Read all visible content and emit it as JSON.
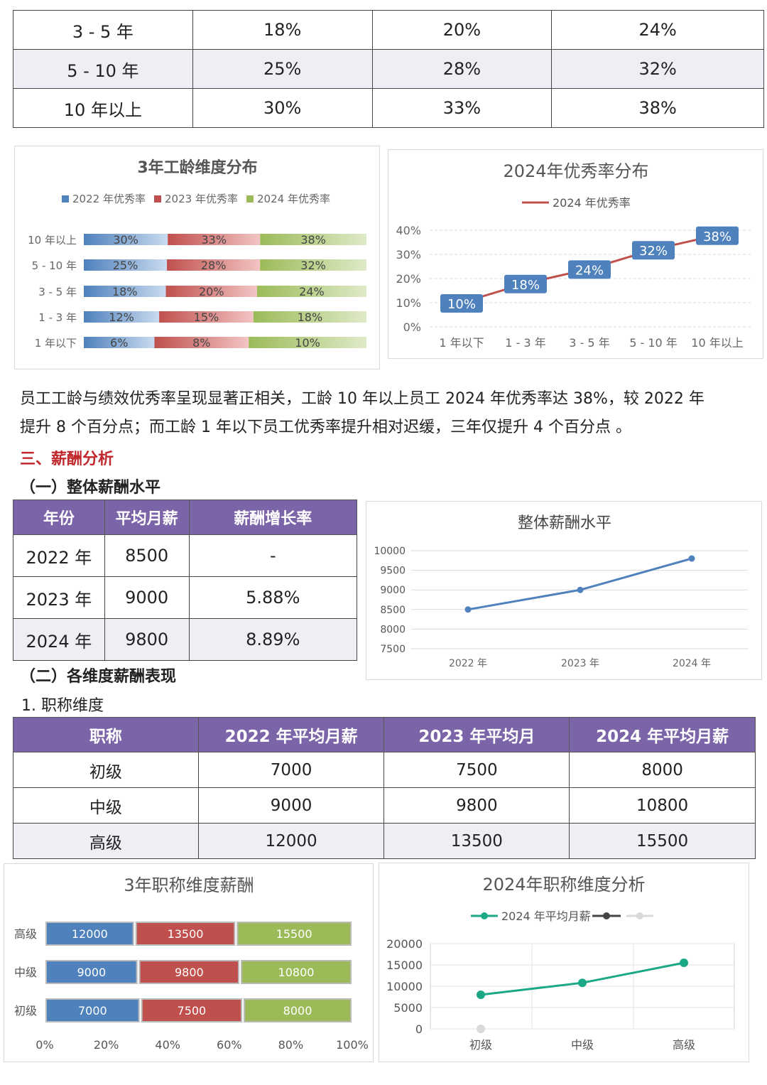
{
  "tenure_table": {
    "rows": [
      [
        "3 - 5 年",
        "18%",
        "20%",
        "24%"
      ],
      [
        "5 - 10 年",
        "25%",
        "28%",
        "32%"
      ],
      [
        "10 年以上",
        "30%",
        "33%",
        "38%"
      ]
    ]
  },
  "chart_titles": {
    "tenure_stacked": "3年工龄维度分布",
    "excellence_2024": "2024年优秀率分布",
    "overall_salary": "整体薪酬水平",
    "title_stacked": "3年职称维度薪酬",
    "title_2024": "2024年职称维度分析"
  },
  "paragraph": {
    "line1": "员工工龄与绩效优秀率呈现显著正相关，工龄 10 年以上员工 2024 年优秀率达 38%，较 2022 年",
    "line2": "提升 8 个百分点；而工龄 1 年以下员工优秀率提升相对迟缓，三年仅提升 4 个百分点 。"
  },
  "headings": {
    "section3": "三、薪酬分析",
    "sub1": "（一）整体薪酬水平",
    "sub2": "（二）各维度薪酬表现",
    "item1": "1. 职称维度"
  },
  "overall_table": {
    "headers": [
      "年份",
      "平均月薪",
      "薪酬增长率"
    ],
    "rows": [
      [
        "2022 年",
        "8500",
        "-"
      ],
      [
        "2023 年",
        "9000",
        "5.88%"
      ],
      [
        "2024 年",
        "9800",
        "8.89%"
      ]
    ]
  },
  "title_table": {
    "headers": [
      "职称",
      "2022 年平均月薪",
      "2023 年平均月",
      "2024 年平均月薪"
    ],
    "rows": [
      [
        "初级",
        "7000",
        "7500",
        "8000"
      ],
      [
        "中级",
        "9000",
        "9800",
        "10800"
      ],
      [
        "高级",
        "12000",
        "13500",
        "15500"
      ]
    ]
  },
  "colors": {
    "blue": "#4f81bd",
    "red": "#c0504d",
    "green": "#9bbb59",
    "purple": "#7c64a8",
    "teal": "#1aa887",
    "heading_red": "#c0282d"
  },
  "chart_data": [
    {
      "type": "bar",
      "stacked": "percent",
      "orientation": "horizontal",
      "categories": [
        "1 年以下",
        "1 - 3 年",
        "3 - 5 年",
        "5 - 10 年",
        "10 年以上"
      ],
      "series": [
        {
          "name": "2022 年优秀率",
          "values": [
            6,
            12,
            18,
            25,
            30
          ],
          "labels": [
            "6%",
            "12%",
            "18%",
            "25%",
            "30%"
          ]
        },
        {
          "name": "2023 年优秀率",
          "values": [
            8,
            15,
            20,
            28,
            33
          ],
          "labels": [
            "8%",
            "15%",
            "20%",
            "28%",
            "33%"
          ]
        },
        {
          "name": "2024 年优秀率",
          "values": [
            10,
            18,
            24,
            32,
            38
          ],
          "labels": [
            "10%",
            "18%",
            "24%",
            "32%",
            "38%"
          ]
        }
      ],
      "legend": "top"
    },
    {
      "type": "line",
      "categories": [
        "1 年以下",
        "1 - 3 年",
        "3 - 5 年",
        "5 - 10 年",
        "10 年以上"
      ],
      "series": [
        {
          "name": "2024 年优秀率",
          "values": [
            10,
            18,
            24,
            32,
            38
          ],
          "labels": [
            "10%",
            "18%",
            "24%",
            "32%",
            "38%"
          ]
        }
      ],
      "yticks": [
        "0%",
        "10%",
        "20%",
        "30%",
        "40%"
      ],
      "ylim": [
        0,
        40
      ],
      "legend": "top"
    },
    {
      "type": "line",
      "categories": [
        "2022 年",
        "2023 年",
        "2024 年"
      ],
      "series": [
        {
          "values": [
            8500,
            9000,
            9800
          ]
        }
      ],
      "yticks": [
        "7500",
        "8000",
        "8500",
        "9000",
        "9500",
        "10000"
      ],
      "ylim": [
        7500,
        10000
      ]
    },
    {
      "type": "bar",
      "stacked": "percent",
      "orientation": "horizontal",
      "categories": [
        "初级",
        "中级",
        "高级"
      ],
      "series": [
        {
          "values": [
            7000,
            9000,
            12000
          ],
          "labels": [
            "7000",
            "9000",
            "12000"
          ]
        },
        {
          "values": [
            7500,
            9800,
            13500
          ],
          "labels": [
            "7500",
            "9800",
            "13500"
          ]
        },
        {
          "values": [
            8000,
            10800,
            15500
          ],
          "labels": [
            "8000",
            "10800",
            "15500"
          ]
        }
      ],
      "xticks": [
        "0%",
        "20%",
        "40%",
        "60%",
        "80%",
        "100%"
      ]
    },
    {
      "type": "line",
      "categories": [
        "初级",
        "中级",
        "高级"
      ],
      "series": [
        {
          "name": "2024 年平均月薪",
          "values": [
            8000,
            10800,
            15500
          ]
        }
      ],
      "yticks": [
        "0",
        "5000",
        "10000",
        "15000",
        "20000"
      ],
      "ylim": [
        0,
        20000
      ],
      "legend": "top"
    }
  ]
}
